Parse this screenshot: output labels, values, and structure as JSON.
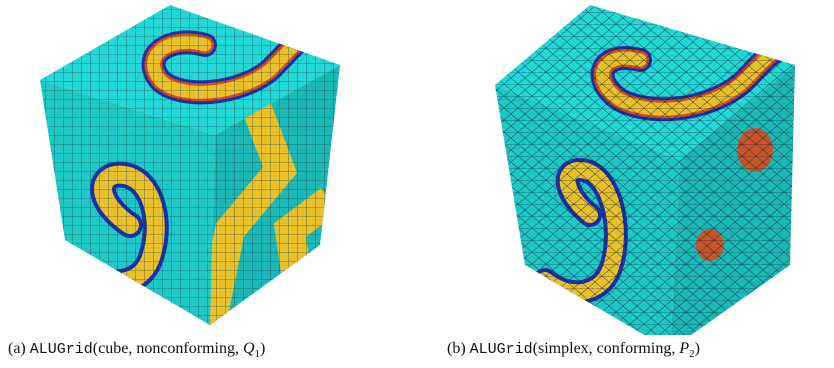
{
  "figures": [
    {
      "label": "(a)",
      "code": "ALUGrid",
      "args": "(cube, nonconforming, ",
      "var": "Q",
      "sub": "1",
      "close": ")"
    },
    {
      "label": "(b)",
      "code": "ALUGrid",
      "args": "(simplex, conforming, ",
      "var": "P",
      "sub": "2",
      "close": ")"
    }
  ]
}
